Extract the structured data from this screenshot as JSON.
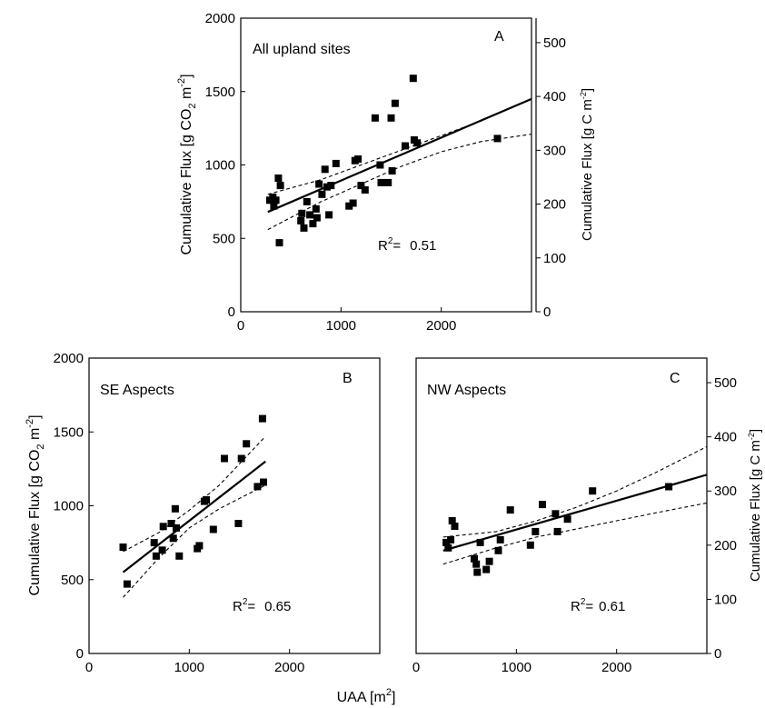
{
  "figure": {
    "shared_xlabel": "UAA [m",
    "shared_xlabel_sup": "2",
    "shared_xlabel_end": "]"
  },
  "chart_data": [
    {
      "id": "A",
      "type": "scatter",
      "panel_label": "A",
      "title": "All upland sites",
      "ylabel_left": {
        "text": "Cumulative Flux [g CO",
        "sub": "2",
        "mid": " m",
        "sup": "-2",
        "end": "]"
      },
      "ylabel_right": {
        "text": "Cumulative Flux [g C m",
        "sup": "-2",
        "end": "]"
      },
      "r2_text": "R",
      "r2_sup": "2",
      "r2_eq": "=",
      "r2_value": "0.51",
      "xlim": [
        0,
        2900
      ],
      "ylim": [
        0,
        2000
      ],
      "y2lim": [
        0,
        545.45
      ],
      "x_ticks": [
        0,
        1000,
        2000
      ],
      "y_ticks": [
        0,
        500,
        1000,
        1500,
        2000
      ],
      "y2_ticks": [
        0,
        100,
        200,
        300,
        400,
        500
      ],
      "points": [
        [
          290,
          760
        ],
        [
          320,
          780
        ],
        [
          330,
          720
        ],
        [
          350,
          760
        ],
        [
          375,
          910
        ],
        [
          385,
          470
        ],
        [
          395,
          860
        ],
        [
          600,
          620
        ],
        [
          610,
          670
        ],
        [
          630,
          570
        ],
        [
          660,
          750
        ],
        [
          690,
          660
        ],
        [
          720,
          600
        ],
        [
          750,
          700
        ],
        [
          760,
          640
        ],
        [
          780,
          870
        ],
        [
          810,
          800
        ],
        [
          840,
          970
        ],
        [
          860,
          850
        ],
        [
          880,
          660
        ],
        [
          900,
          860
        ],
        [
          950,
          1010
        ],
        [
          1080,
          720
        ],
        [
          1120,
          740
        ],
        [
          1140,
          1030
        ],
        [
          1170,
          1040
        ],
        [
          1200,
          860
        ],
        [
          1240,
          830
        ],
        [
          1340,
          1320
        ],
        [
          1390,
          1000
        ],
        [
          1400,
          880
        ],
        [
          1470,
          880
        ],
        [
          1500,
          1320
        ],
        [
          1510,
          960
        ],
        [
          1540,
          1420
        ],
        [
          1640,
          1130
        ],
        [
          1720,
          1590
        ],
        [
          1730,
          1170
        ],
        [
          1760,
          1150
        ],
        [
          2560,
          1180
        ]
      ],
      "fit": {
        "x": [
          270,
          2900
        ],
        "y": [
          680,
          1450
        ]
      },
      "ci_upper": {
        "x": [
          270,
          800,
          1200,
          1600,
          2000,
          2400,
          2900
        ],
        "y": [
          800,
          900,
          1000,
          1100,
          1200,
          1300,
          1450
        ]
      },
      "ci_lower": {
        "x": [
          270,
          800,
          1200,
          1600,
          2000,
          2400,
          2900
        ],
        "y": [
          560,
          750,
          870,
          990,
          1090,
          1160,
          1210
        ]
      }
    },
    {
      "id": "B",
      "type": "scatter",
      "panel_label": "B",
      "title": "SE Aspects",
      "ylabel_left": {
        "text": "Cumulative Flux [g CO",
        "sub": "2",
        "mid": " m",
        "sup": "-2",
        "end": "]"
      },
      "r2_text": "R",
      "r2_sup": "2",
      "r2_eq": "=",
      "r2_value": "0.65",
      "xlim": [
        0,
        2900
      ],
      "ylim": [
        0,
        2000
      ],
      "x_ticks": [
        0,
        1000,
        2000
      ],
      "y_ticks": [
        0,
        500,
        1000,
        1500,
        2000
      ],
      "points": [
        [
          340,
          720
        ],
        [
          380,
          470
        ],
        [
          650,
          750
        ],
        [
          670,
          660
        ],
        [
          730,
          700
        ],
        [
          740,
          860
        ],
        [
          820,
          880
        ],
        [
          840,
          780
        ],
        [
          860,
          980
        ],
        [
          870,
          850
        ],
        [
          900,
          660
        ],
        [
          1080,
          710
        ],
        [
          1100,
          730
        ],
        [
          1150,
          1030
        ],
        [
          1170,
          1040
        ],
        [
          1240,
          840
        ],
        [
          1350,
          1320
        ],
        [
          1490,
          880
        ],
        [
          1520,
          1320
        ],
        [
          1570,
          1420
        ],
        [
          1680,
          1130
        ],
        [
          1730,
          1590
        ],
        [
          1740,
          1160
        ]
      ],
      "fit": {
        "x": [
          340,
          1760
        ],
        "y": [
          550,
          1300
        ]
      },
      "ci_upper": {
        "x": [
          340,
          700,
          1000,
          1300,
          1760
        ],
        "y": [
          690,
          820,
          970,
          1140,
          1470
        ]
      },
      "ci_lower": {
        "x": [
          340,
          700,
          1000,
          1300,
          1760
        ],
        "y": [
          380,
          650,
          850,
          980,
          1140
        ]
      }
    },
    {
      "id": "C",
      "type": "scatter",
      "panel_label": "C",
      "title": "NW Aspects",
      "ylabel_right": {
        "text": "Cumulative Flux [g C m",
        "sup": "-2",
        "end": "]"
      },
      "r2_text": "R",
      "r2_sup": "2",
      "r2_eq": "=",
      "r2_value": "0.61",
      "xlim": [
        0,
        2900
      ],
      "y2lim": [
        0,
        545.45
      ],
      "x_ticks": [
        0,
        1000,
        2000
      ],
      "y2_ticks": [
        0,
        100,
        200,
        300,
        400,
        500
      ],
      "points": [
        [
          300,
          205
        ],
        [
          320,
          195
        ],
        [
          345,
          210
        ],
        [
          360,
          245
        ],
        [
          385,
          235
        ],
        [
          580,
          175
        ],
        [
          600,
          165
        ],
        [
          610,
          150
        ],
        [
          640,
          205
        ],
        [
          700,
          155
        ],
        [
          730,
          170
        ],
        [
          820,
          190
        ],
        [
          840,
          210
        ],
        [
          940,
          265
        ],
        [
          1140,
          200
        ],
        [
          1190,
          225
        ],
        [
          1260,
          275
        ],
        [
          1390,
          258
        ],
        [
          1410,
          225
        ],
        [
          1510,
          248
        ],
        [
          1760,
          300
        ],
        [
          2520,
          308
        ]
      ],
      "fit": {
        "x": [
          270,
          2900
        ],
        "y": [
          190,
          330
        ]
      },
      "ci_upper": {
        "x": [
          270,
          800,
          1200,
          1600,
          2000,
          2400,
          2900
        ],
        "y": [
          215,
          225,
          245,
          270,
          300,
          335,
          382
        ]
      },
      "ci_lower": {
        "x": [
          270,
          800,
          1200,
          1600,
          2000,
          2400,
          2900
        ],
        "y": [
          165,
          195,
          215,
          230,
          245,
          260,
          278
        ]
      }
    }
  ]
}
